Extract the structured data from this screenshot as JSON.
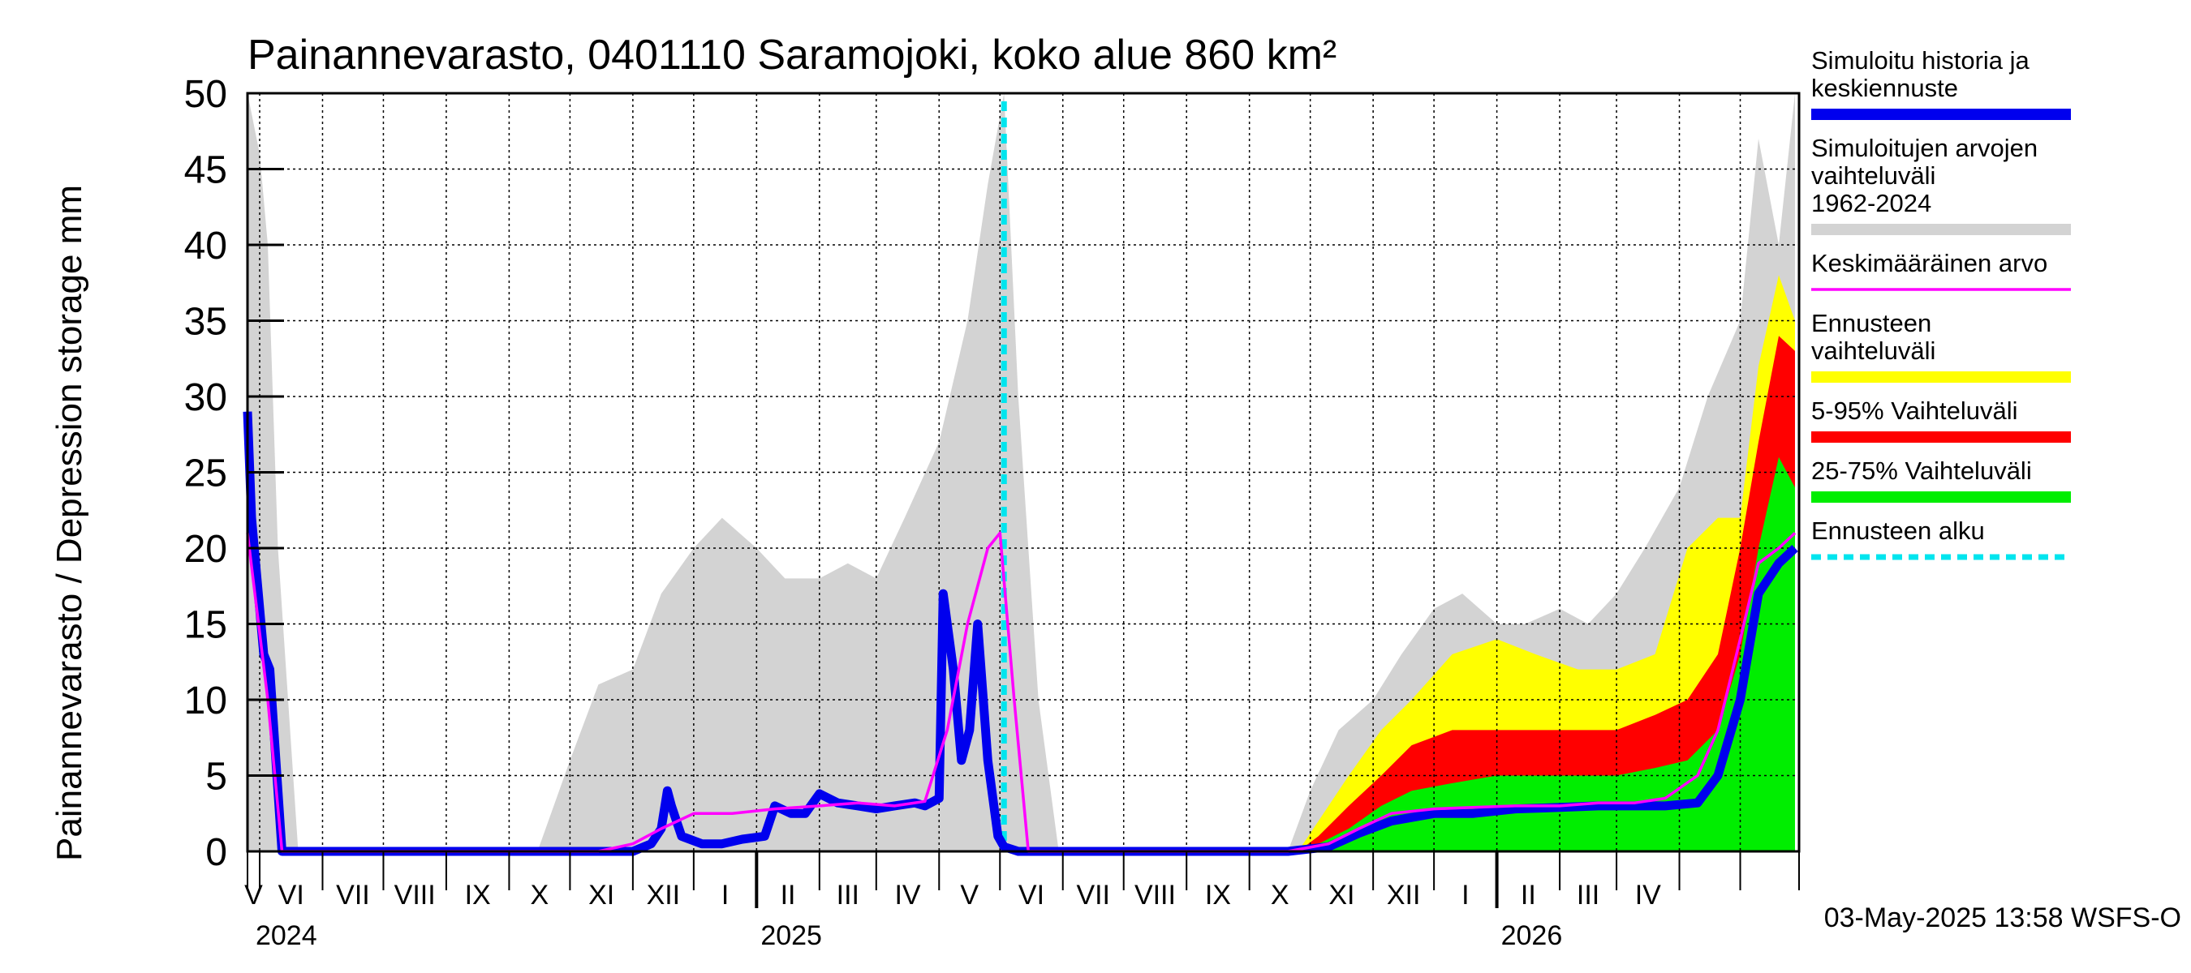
{
  "chart_data": {
    "type": "area",
    "title": "Painannevarasto, 0401110 Saramojoki, koko alue 860 km²",
    "ylabel": "Painannevarasto / Depression storage    mm",
    "ylim": [
      0,
      50
    ],
    "y_ticks": [
      "0",
      "5",
      "10",
      "15",
      "20",
      "25",
      "30",
      "35",
      "40",
      "45",
      "50"
    ],
    "x_start": "2024-04-25",
    "x_end": "2026-05-30",
    "month_labels": [
      "V",
      "VI",
      "VII",
      "VIII",
      "IX",
      "X",
      "XI",
      "XII",
      "I",
      "II",
      "III",
      "IV",
      "V",
      "VI",
      "VII",
      "VIII",
      "IX",
      "X",
      "XI",
      "XII",
      "I",
      "II",
      "III",
      "IV"
    ],
    "year_labels": [
      "2024",
      "2025",
      "2026"
    ],
    "forecast_start": "2025-05-03",
    "grid": true,
    "legend_placement": "right",
    "legend": [
      {
        "label": "Simuloitu historia ja keskiennuste",
        "color": "#0000ee",
        "style": "solid"
      },
      {
        "label": "Simuloitujen arvojen vaihteluväli 1962-2024",
        "color": "#d3d3d3",
        "style": "solid"
      },
      {
        "label": "Keskimääräinen arvo",
        "color": "#ff00ff",
        "style": "thin"
      },
      {
        "label": "Ennusteen vaihteluväli",
        "color": "#ffff00",
        "style": "solid"
      },
      {
        "label": "5-95% Vaihteluväli",
        "color": "#ff0000",
        "style": "solid"
      },
      {
        "label": "25-75% Vaihteluväli",
        "color": "#00ee00",
        "style": "solid"
      },
      {
        "label": "Ennusteen alku",
        "color": "#00e5ee",
        "style": "dashed"
      }
    ],
    "series": [
      {
        "name": "Simuloitujen arvojen vaihteluväli 1962-2024",
        "color": "#d3d3d3",
        "x": [
          "2024-04-25",
          "2024-05-01",
          "2024-05-05",
          "2024-05-10",
          "2024-05-20",
          "2024-09-15",
          "2024-10-01",
          "2024-10-15",
          "2024-11-01",
          "2024-11-15",
          "2024-12-01",
          "2024-12-15",
          "2025-01-01",
          "2025-01-15",
          "2025-02-01",
          "2025-02-15",
          "2025-03-01",
          "2025-03-15",
          "2025-04-01",
          "2025-04-15",
          "2025-04-25",
          "2025-05-03",
          "2025-05-10",
          "2025-05-20",
          "2025-05-30",
          "2025-09-20",
          "2025-10-01",
          "2025-10-15",
          "2025-11-01",
          "2025-11-15",
          "2025-12-01",
          "2025-12-15",
          "2026-01-01",
          "2026-01-15",
          "2026-02-01",
          "2026-02-15",
          "2026-03-01",
          "2026-03-15",
          "2026-04-01",
          "2026-04-15",
          "2026-05-01",
          "2026-05-10",
          "2026-05-20",
          "2026-05-28"
        ],
        "values": [
          50,
          46,
          40,
          20,
          0,
          0,
          6,
          11,
          12,
          17,
          20,
          22,
          20,
          18,
          18,
          19,
          18,
          22,
          27,
          35,
          44,
          50,
          30,
          10,
          0,
          0,
          4,
          8,
          10,
          13,
          16,
          17,
          15,
          15,
          16,
          15,
          17,
          20,
          24,
          30,
          35,
          47,
          40,
          50
        ]
      },
      {
        "name": "Ennusteen vaihteluväli",
        "color": "#ffff00",
        "x": [
          "2025-09-25",
          "2025-10-05",
          "2025-10-20",
          "2025-11-05",
          "2025-11-20",
          "2025-12-10",
          "2026-01-01",
          "2026-01-20",
          "2026-02-10",
          "2026-03-01",
          "2026-03-20",
          "2026-04-05",
          "2026-04-20",
          "2026-05-01",
          "2026-05-10",
          "2026-05-20",
          "2026-05-28"
        ],
        "values": [
          0,
          2,
          5,
          8,
          10,
          13,
          14,
          13,
          12,
          12,
          13,
          20,
          22,
          22,
          32,
          38,
          35
        ]
      },
      {
        "name": "5-95% Vaihteluväli",
        "color": "#ff0000",
        "x": [
          "2025-09-25",
          "2025-10-05",
          "2025-10-20",
          "2025-11-05",
          "2025-11-20",
          "2025-12-10",
          "2026-01-01",
          "2026-01-20",
          "2026-02-10",
          "2026-03-01",
          "2026-03-20",
          "2026-04-05",
          "2026-04-20",
          "2026-05-01",
          "2026-05-10",
          "2026-05-20",
          "2026-05-28"
        ],
        "values": [
          0,
          1,
          3,
          5,
          7,
          8,
          8,
          8,
          8,
          8,
          9,
          10,
          13,
          20,
          27,
          34,
          33
        ]
      },
      {
        "name": "25-75% Vaihteluväli",
        "color": "#00ee00",
        "x": [
          "2025-09-25",
          "2025-10-05",
          "2025-10-20",
          "2025-11-05",
          "2025-11-20",
          "2025-12-10",
          "2026-01-01",
          "2026-01-20",
          "2026-02-10",
          "2026-03-01",
          "2026-03-20",
          "2026-04-05",
          "2026-04-20",
          "2026-05-01",
          "2026-05-10",
          "2026-05-20",
          "2026-05-28"
        ],
        "values": [
          0,
          0.5,
          1.5,
          3,
          4,
          4.5,
          5,
          5,
          5,
          5,
          5.5,
          6,
          8,
          13,
          20,
          26,
          24
        ]
      },
      {
        "name": "Simuloitu historia ja keskiennuste",
        "color": "#0000ee",
        "x": [
          "2024-04-25",
          "2024-04-27",
          "2024-05-03",
          "2024-05-06",
          "2024-05-12",
          "2024-10-20",
          "2024-11-01",
          "2024-11-10",
          "2024-11-15",
          "2024-11-18",
          "2024-11-20",
          "2024-11-25",
          "2024-12-05",
          "2024-12-15",
          "2024-12-25",
          "2025-01-05",
          "2025-01-10",
          "2025-01-18",
          "2025-01-25",
          "2025-02-01",
          "2025-02-10",
          "2025-02-20",
          "2025-03-01",
          "2025-03-10",
          "2025-03-20",
          "2025-03-25",
          "2025-04-01",
          "2025-04-03",
          "2025-04-08",
          "2025-04-12",
          "2025-04-16",
          "2025-04-20",
          "2025-04-25",
          "2025-04-30",
          "2025-05-03",
          "2025-05-10",
          "2025-09-20",
          "2025-10-10",
          "2025-10-25",
          "2025-11-10",
          "2025-12-01",
          "2025-12-20",
          "2026-01-10",
          "2026-02-01",
          "2026-02-20",
          "2026-03-10",
          "2026-03-25",
          "2026-04-10",
          "2026-04-20",
          "2026-05-01",
          "2026-05-10",
          "2026-05-20",
          "2026-05-28"
        ],
        "values": [
          29,
          22,
          13,
          12,
          0,
          0,
          0,
          0.5,
          1.5,
          4,
          3,
          1,
          0.5,
          0.5,
          0.8,
          1,
          3,
          2.5,
          2.5,
          3.8,
          3.2,
          3,
          2.8,
          3,
          3.2,
          3,
          3.5,
          17,
          12,
          6,
          8,
          15,
          6,
          1,
          0.3,
          0,
          0,
          0.3,
          1.2,
          2,
          2.5,
          2.5,
          2.8,
          2.9,
          3,
          3,
          3,
          3.2,
          5,
          10,
          17,
          19,
          20
        ]
      },
      {
        "name": "Keskimääräinen arvo",
        "color": "#ff00ff",
        "x": [
          "2024-04-25",
          "2024-05-05",
          "2024-05-12",
          "2024-10-15",
          "2024-11-01",
          "2024-11-15",
          "2024-12-01",
          "2024-12-20",
          "2025-01-10",
          "2025-02-01",
          "2025-02-20",
          "2025-03-10",
          "2025-03-25",
          "2025-04-05",
          "2025-04-15",
          "2025-04-25",
          "2025-05-01",
          "2025-05-08",
          "2025-05-15",
          "2025-09-20",
          "2025-10-10",
          "2025-10-25",
          "2025-11-10",
          "2025-12-01",
          "2025-12-20",
          "2026-01-10",
          "2026-02-01",
          "2026-02-20",
          "2026-03-10",
          "2026-03-25",
          "2026-04-10",
          "2026-04-20",
          "2026-05-01",
          "2026-05-10",
          "2026-05-20",
          "2026-05-28"
        ],
        "values": [
          21,
          10,
          0,
          0,
          0.5,
          1.5,
          2.5,
          2.5,
          2.8,
          3,
          3.2,
          3,
          3.3,
          8,
          15,
          20,
          21,
          10,
          0,
          0,
          0.5,
          1.5,
          2.5,
          2.8,
          2.9,
          3,
          3,
          3.2,
          3.2,
          3.5,
          5,
          8,
          14,
          19,
          20,
          21
        ]
      }
    ]
  },
  "footer": {
    "timestamp": "03-May-2025 13:58 WSFS-O"
  }
}
